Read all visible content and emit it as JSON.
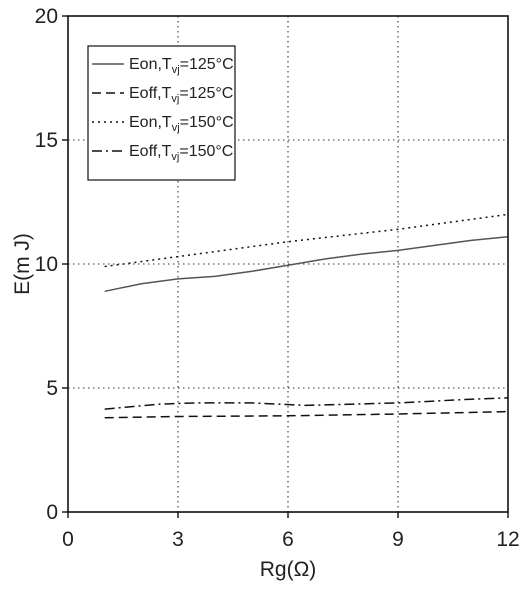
{
  "chart_data": {
    "type": "line",
    "title": "",
    "xlabel": "Rg(Ω)",
    "ylabel": "E(m J)",
    "xlim": [
      0,
      12
    ],
    "ylim": [
      0,
      20
    ],
    "xticks": [
      "0",
      "3",
      "6",
      "9",
      "12"
    ],
    "yticks": [
      "0",
      "5",
      "10",
      "15",
      "20"
    ],
    "grid": true,
    "legend_position": "top-left",
    "series": [
      {
        "label_main": "Eon,T",
        "label_sub": "vj",
        "label_rest": "=125°C",
        "dash": "solid",
        "color": "#555555",
        "points": [
          [
            1,
            8.9
          ],
          [
            2,
            9.2
          ],
          [
            3,
            9.4
          ],
          [
            4,
            9.5
          ],
          [
            5,
            9.7
          ],
          [
            6,
            9.95
          ],
          [
            7,
            10.2
          ],
          [
            8,
            10.4
          ],
          [
            9,
            10.55
          ],
          [
            10,
            10.75
          ],
          [
            11,
            10.95
          ],
          [
            12,
            11.1
          ]
        ]
      },
      {
        "label_main": "Eoff,T",
        "label_sub": "vj",
        "label_rest": "=125°C",
        "dash": "dashed",
        "color": "#111111",
        "points": [
          [
            1,
            3.8
          ],
          [
            3,
            3.85
          ],
          [
            6,
            3.88
          ],
          [
            9,
            3.95
          ],
          [
            12,
            4.05
          ]
        ]
      },
      {
        "label_main": "Eon,T",
        "label_sub": "vj",
        "label_rest": "=150°C",
        "dash": "dotted",
        "color": "#111111",
        "points": [
          [
            1,
            9.9
          ],
          [
            3,
            10.3
          ],
          [
            6,
            10.9
          ],
          [
            9,
            11.4
          ],
          [
            12,
            12.0
          ]
        ]
      },
      {
        "label_main": "Eoff,T",
        "label_sub": "vj",
        "label_rest": "=150°C",
        "dash": "dashdot",
        "color": "#111111",
        "points": [
          [
            1,
            4.15
          ],
          [
            2.5,
            4.35
          ],
          [
            3.5,
            4.4
          ],
          [
            5,
            4.4
          ],
          [
            6.5,
            4.3
          ],
          [
            9,
            4.4
          ],
          [
            11,
            4.55
          ],
          [
            12,
            4.6
          ]
        ]
      }
    ]
  }
}
